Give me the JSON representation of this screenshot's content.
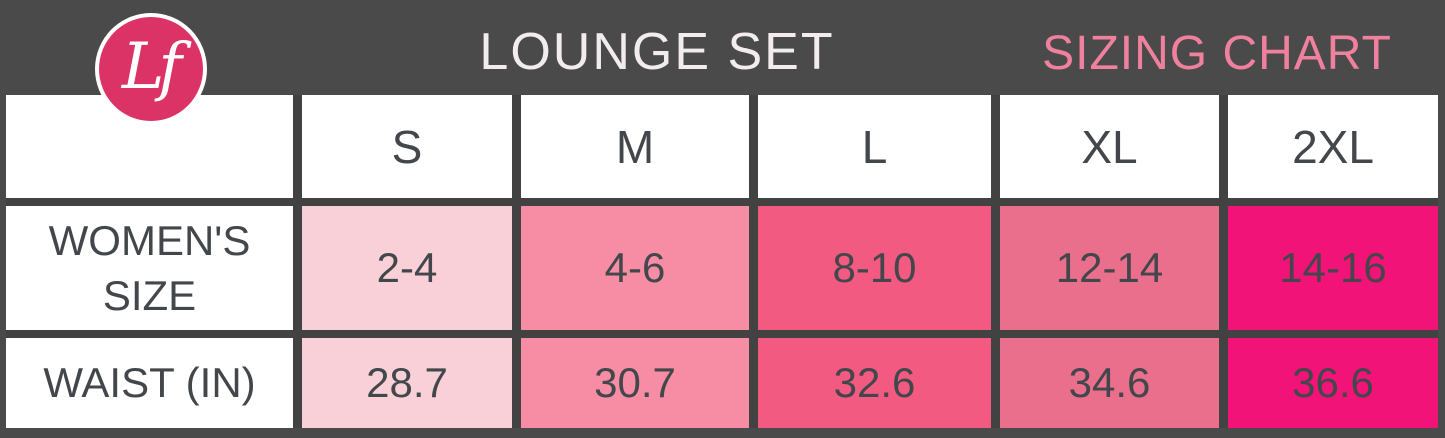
{
  "banner": {
    "logo_monogram": "Lf",
    "title": "LOUNGE SET",
    "subtitle": "SIZING CHART"
  },
  "colors": {
    "background": "#4a4a4a",
    "table_border": "#424242",
    "title_text": "#f2ecee",
    "subtitle_pink": "#f0819e",
    "logo_pink": "#dc3366",
    "cell_text": "#43474b",
    "cell_white": "#ffffff",
    "col_s": "#f9d0d8",
    "col_m": "#f78da4",
    "col_l": "#f25a82",
    "col_xl": "#e96f8c",
    "col_2xl": "#f11377"
  },
  "chart_data": {
    "type": "table",
    "title": "LOUNGE SET",
    "subtitle": "SIZING CHART",
    "columns": [
      "",
      "S",
      "M",
      "L",
      "XL",
      "2XL"
    ],
    "rows": [
      {
        "label": "WOMEN'S SIZE",
        "values": [
          "2-4",
          "4-6",
          "8-10",
          "12-14",
          "14-16"
        ]
      },
      {
        "label": "WAIST (IN)",
        "values": [
          "28.7",
          "30.7",
          "32.6",
          "34.6",
          "36.6"
        ]
      }
    ],
    "column_colors": [
      "#ffffff",
      "#f9d0d8",
      "#f78da4",
      "#f25a82",
      "#e96f8c",
      "#f11377"
    ],
    "layout_hint": "size columns shade from light pink (S) to hot magenta (2XL)"
  }
}
